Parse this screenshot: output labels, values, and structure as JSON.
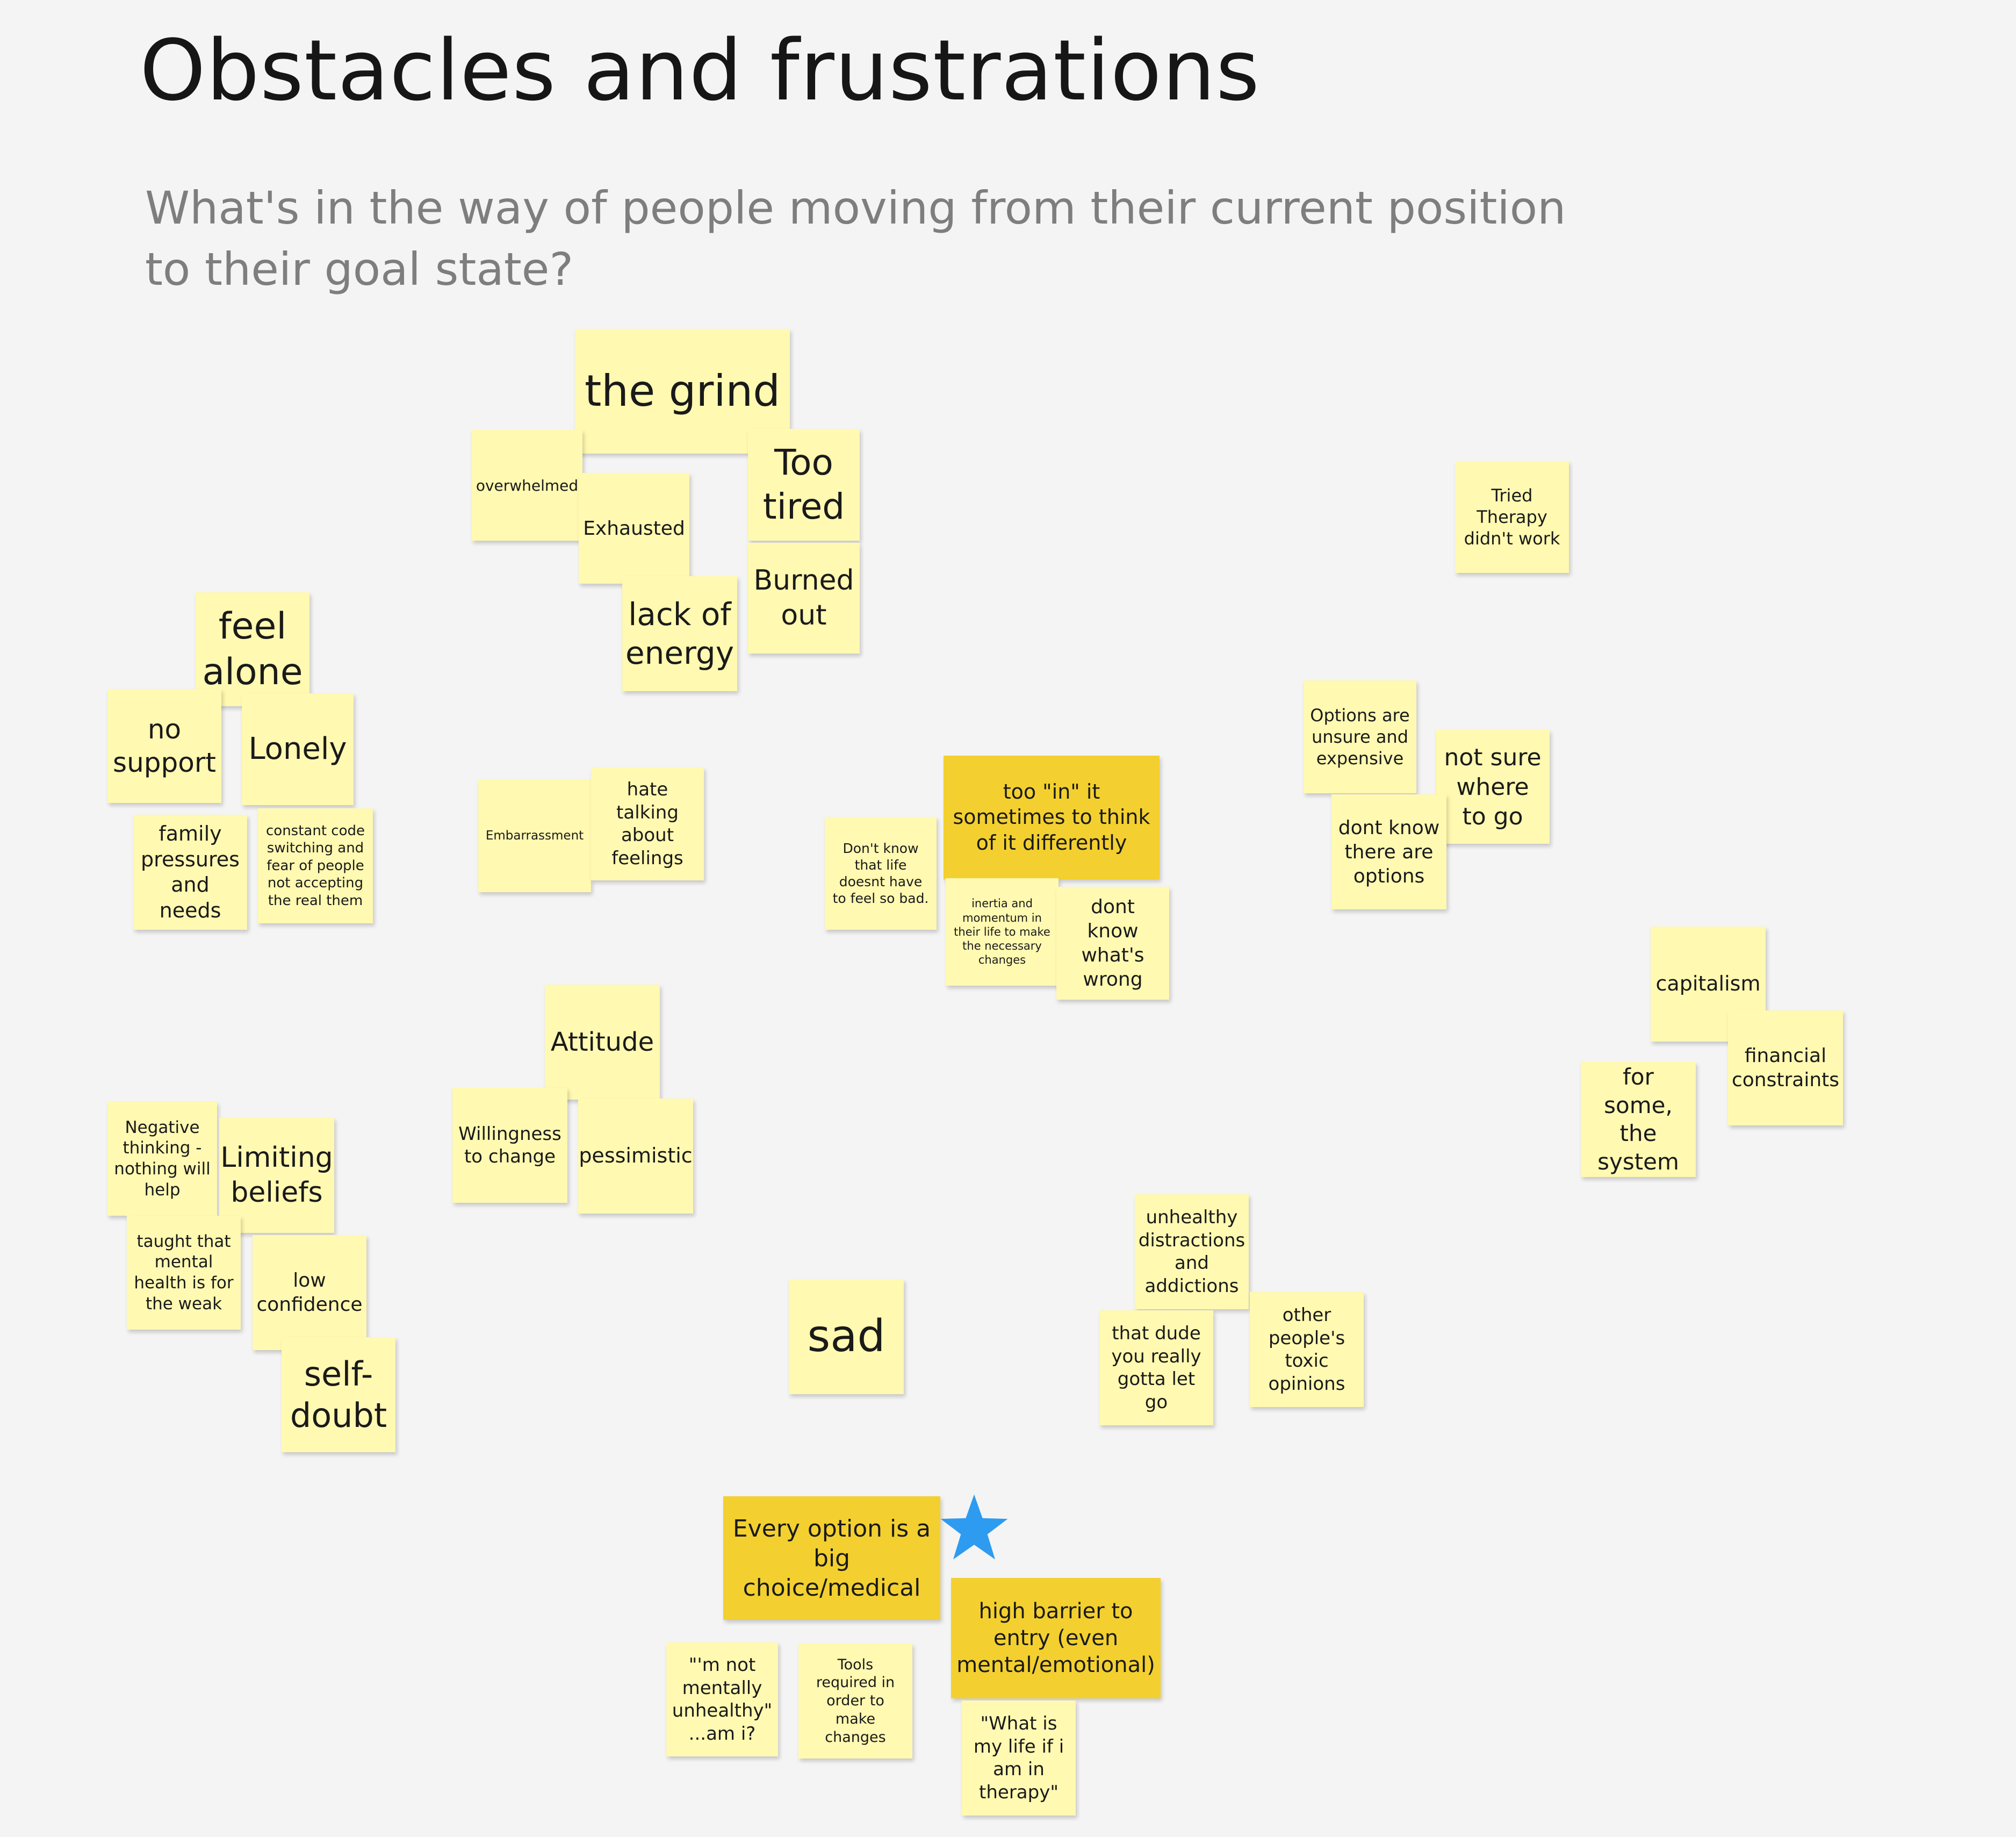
{
  "board": {
    "title": "Obstacles and frustrations",
    "subtitle": "What's in the way of people moving from their current position to their goal state?"
  },
  "colors": {
    "background": "#f4f4f4",
    "sticky_light": "#fff9b1",
    "sticky_gold": "#f3d02f",
    "star": "#2d9bf0",
    "title_text": "#161616",
    "subtitle_text": "#7e7e7e"
  },
  "notes": {
    "the_grind": "the grind",
    "overwhelmed": "overwhelmed",
    "exhausted": "Exhausted",
    "too_tired": "Too tired",
    "burned_out": "Burned out",
    "lack_of_energy": "lack of energy",
    "feel_alone": "feel alone",
    "no_support": "no support",
    "lonely": "Lonely",
    "family_pressures": "family pressures and needs",
    "code_switching": "constant code switching and fear of people not accepting the real them",
    "embarrassment": "Embarrassment",
    "hate_talking": "hate talking about feelings",
    "dont_know_life": "Don't know that life doesnt have to feel so bad.",
    "too_in_it": "too \"in\" it sometimes to think of it differently",
    "inertia": "inertia and momentum in their life to make the necessary changes",
    "dont_know_wrong": "dont know what's wrong",
    "tried_therapy": "Tried Therapy didn't work",
    "options_unsure": "Options are unsure and expensive",
    "not_sure_where": "not sure where to go",
    "dont_know_options": "dont know there are options",
    "capitalism": "capitalism",
    "financial": "financial constraints",
    "the_system": "for some, the system",
    "attitude": "Attitude",
    "willingness": "Willingness to change",
    "pessimistic": "pessimistic",
    "negative_thinking": "Negative thinking - nothing will help",
    "limiting_beliefs": "Limiting beliefs",
    "taught_weak": "taught that mental health is for the weak",
    "low_confidence": "low confidence",
    "self_doubt": "self-doubt",
    "sad": "sad",
    "unhealthy": "unhealthy distractions and addictions",
    "that_dude": "that dude you really gotta let go",
    "toxic_opinions": "other people's toxic opinions",
    "every_option": "Every option is a big choice/medical",
    "high_barrier": "high barrier to entry (even mental/emotional)",
    "not_mentally": "\"'m not mentally unhealthy\" ...am i?",
    "tools_required": "Tools required in order to make changes",
    "what_is_my_life": "\"What is my life if i am in therapy\""
  },
  "icons": {
    "star": "star-icon"
  }
}
